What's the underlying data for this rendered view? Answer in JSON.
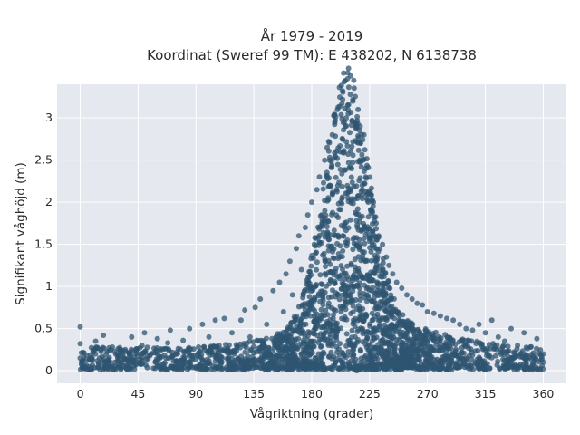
{
  "chart_data": {
    "type": "scatter",
    "title": "År 1979 - 2019",
    "subtitle": "Koordinat (Sweref 99 TM): E 438202, N 6138738",
    "xlabel": "Vågriktning (grader)",
    "ylabel": "Signifikant våghöjd (m)",
    "xlim": [
      -18,
      378
    ],
    "ylim": [
      -0.15,
      3.4
    ],
    "xticks": [
      0,
      45,
      90,
      135,
      180,
      225,
      270,
      315,
      360
    ],
    "xtick_labels": [
      "0",
      "45",
      "90",
      "135",
      "180",
      "225",
      "270",
      "315",
      "360"
    ],
    "yticks": [
      0,
      0.5,
      1,
      1.5,
      2,
      2.5,
      3
    ],
    "ytick_labels": [
      "0",
      "0,5",
      "1",
      "1,5",
      "2",
      "2,5",
      "3"
    ],
    "grid": true,
    "legend": "none",
    "colors": {
      "marker": "#2e5470",
      "plot_bg": "#e5e8ef",
      "grid": "#ffffff"
    },
    "series": [
      {
        "points": [
          [
            0,
            0.52
          ],
          [
            0,
            0.32
          ],
          [
            0,
            0.15
          ],
          [
            2,
            0.12
          ],
          [
            5,
            0.18
          ],
          [
            10,
            0.22
          ],
          [
            12,
            0.35
          ],
          [
            15,
            0.15
          ],
          [
            18,
            0.42
          ],
          [
            20,
            0.1
          ],
          [
            25,
            0.28
          ],
          [
            30,
            0.17
          ],
          [
            35,
            0.25
          ],
          [
            40,
            0.4
          ],
          [
            42,
            0.12
          ],
          [
            48,
            0.3
          ],
          [
            50,
            0.45
          ],
          [
            55,
            0.2
          ],
          [
            60,
            0.38
          ],
          [
            62,
            0.15
          ],
          [
            68,
            0.33
          ],
          [
            70,
            0.48
          ],
          [
            75,
            0.22
          ],
          [
            80,
            0.36
          ],
          [
            85,
            0.5
          ],
          [
            88,
            0.18
          ],
          [
            92,
            0.28
          ],
          [
            95,
            0.55
          ],
          [
            100,
            0.4
          ],
          [
            105,
            0.6
          ],
          [
            108,
            0.3
          ],
          [
            112,
            0.62
          ],
          [
            118,
            0.45
          ],
          [
            120,
            0.2
          ],
          [
            125,
            0.6
          ],
          [
            128,
            0.72
          ],
          [
            132,
            0.4
          ],
          [
            136,
            0.75
          ],
          [
            140,
            0.85
          ],
          [
            145,
            0.55
          ],
          [
            150,
            0.95
          ],
          [
            155,
            1.05
          ],
          [
            158,
            0.7
          ],
          [
            160,
            1.15
          ],
          [
            163,
            1.3
          ],
          [
            165,
            0.9
          ],
          [
            168,
            1.45
          ],
          [
            170,
            1.6
          ],
          [
            172,
            1.2
          ],
          [
            175,
            1.7
          ],
          [
            177,
            1.85
          ],
          [
            180,
            2.0
          ],
          [
            182,
            1.5
          ],
          [
            184,
            2.15
          ],
          [
            186,
            2.3
          ],
          [
            188,
            1.8
          ],
          [
            190,
            2.5
          ],
          [
            192,
            2.65
          ],
          [
            194,
            2.2
          ],
          [
            196,
            2.8
          ],
          [
            198,
            2.95
          ],
          [
            200,
            3.1
          ],
          [
            202,
            2.6
          ],
          [
            204,
            3.22
          ],
          [
            206,
            2.9
          ],
          [
            208,
            3.15
          ],
          [
            210,
            3.28
          ],
          [
            212,
            3.2
          ],
          [
            214,
            2.95
          ],
          [
            216,
            3.1
          ],
          [
            218,
            2.7
          ],
          [
            220,
            2.5
          ],
          [
            222,
            2.3
          ],
          [
            224,
            2.1
          ],
          [
            226,
            1.9
          ],
          [
            228,
            2.0
          ],
          [
            230,
            1.75
          ],
          [
            232,
            1.6
          ],
          [
            235,
            1.5
          ],
          [
            238,
            1.35
          ],
          [
            240,
            1.25
          ],
          [
            243,
            1.15
          ],
          [
            246,
            1.05
          ],
          [
            250,
            0.98
          ],
          [
            254,
            0.9
          ],
          [
            258,
            0.85
          ],
          [
            262,
            0.8
          ],
          [
            266,
            0.78
          ],
          [
            270,
            0.7
          ],
          [
            275,
            0.68
          ],
          [
            280,
            0.65
          ],
          [
            285,
            0.62
          ],
          [
            290,
            0.6
          ],
          [
            295,
            0.55
          ],
          [
            300,
            0.5
          ],
          [
            305,
            0.48
          ],
          [
            310,
            0.55
          ],
          [
            315,
            0.45
          ],
          [
            320,
            0.6
          ],
          [
            325,
            0.4
          ],
          [
            330,
            0.35
          ],
          [
            335,
            0.5
          ],
          [
            340,
            0.3
          ],
          [
            345,
            0.45
          ],
          [
            350,
            0.28
          ],
          [
            355,
            0.38
          ],
          [
            360,
            0.2
          ],
          [
            360,
            0.1
          ],
          [
            330,
            0.12
          ],
          [
            300,
            0.15
          ],
          [
            270,
            0.1
          ],
          [
            250,
            0.05
          ],
          [
            230,
            0.02
          ],
          [
            215,
            0.0
          ],
          [
            200,
            0.03
          ],
          [
            185,
            0.05
          ],
          [
            170,
            0.08
          ],
          [
            150,
            0.1
          ],
          [
            130,
            0.12
          ],
          [
            110,
            0.1
          ]
        ]
      }
    ]
  }
}
